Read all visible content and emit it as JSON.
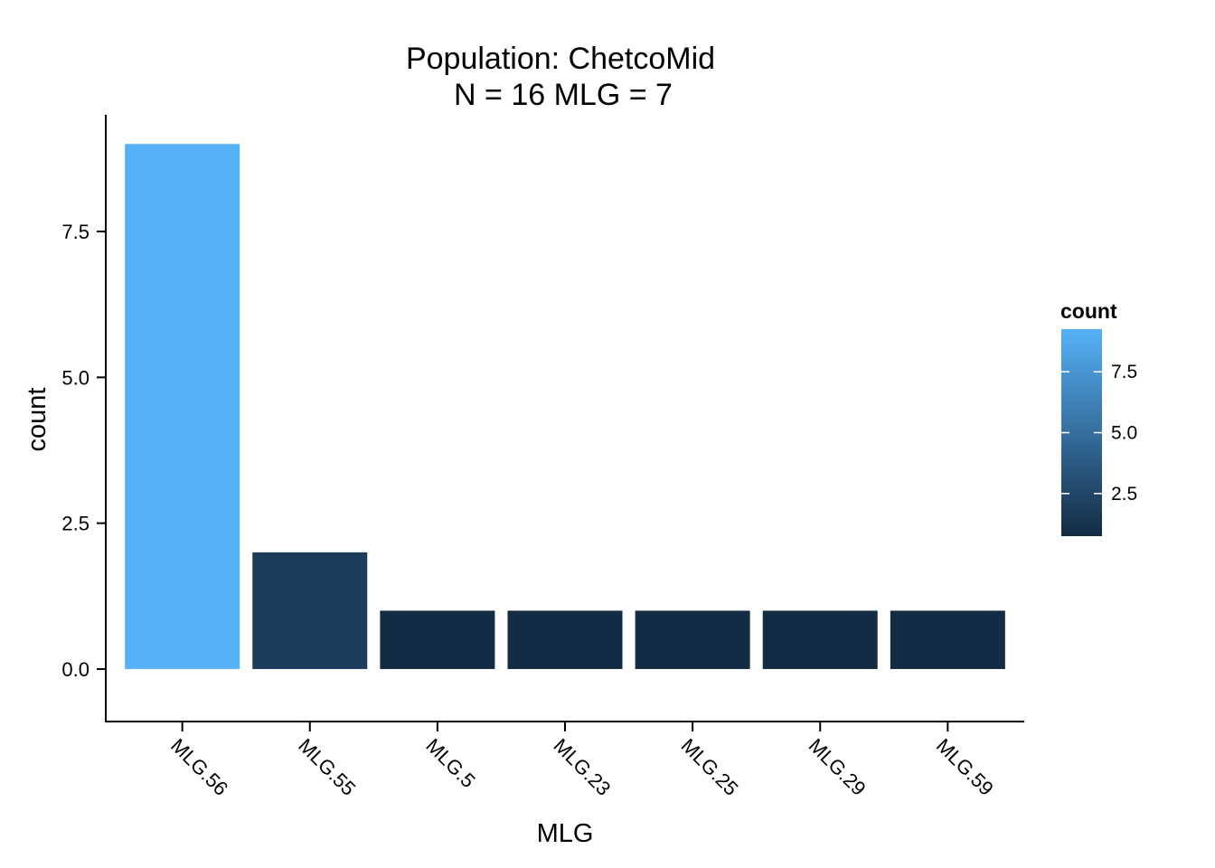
{
  "chart_data": {
    "type": "bar",
    "title": "Population: ChetcoMid",
    "subtitle": "N = 16 MLG = 7",
    "xlabel": "MLG",
    "ylabel": "count",
    "categories": [
      "MLG.56",
      "MLG.55",
      "MLG.5",
      "MLG.23",
      "MLG.25",
      "MLG.29",
      "MLG.59"
    ],
    "values": [
      9,
      2,
      1,
      1,
      1,
      1,
      1
    ],
    "ylim": [
      -0.9,
      9.5
    ],
    "yticks": [
      0,
      2.5,
      5,
      7.5
    ],
    "ytick_labels": [
      "0.0",
      "2.5",
      "5.0",
      "7.5"
    ],
    "grid": false,
    "colorscale": {
      "title": "count",
      "low_color": "#132B43",
      "high_color": "#56B1F7",
      "range": [
        1,
        9
      ],
      "ticks": [
        2.5,
        5,
        7.5
      ],
      "tick_labels": [
        "2.5",
        "5.0",
        "7.5"
      ]
    },
    "legend_position": "right"
  }
}
